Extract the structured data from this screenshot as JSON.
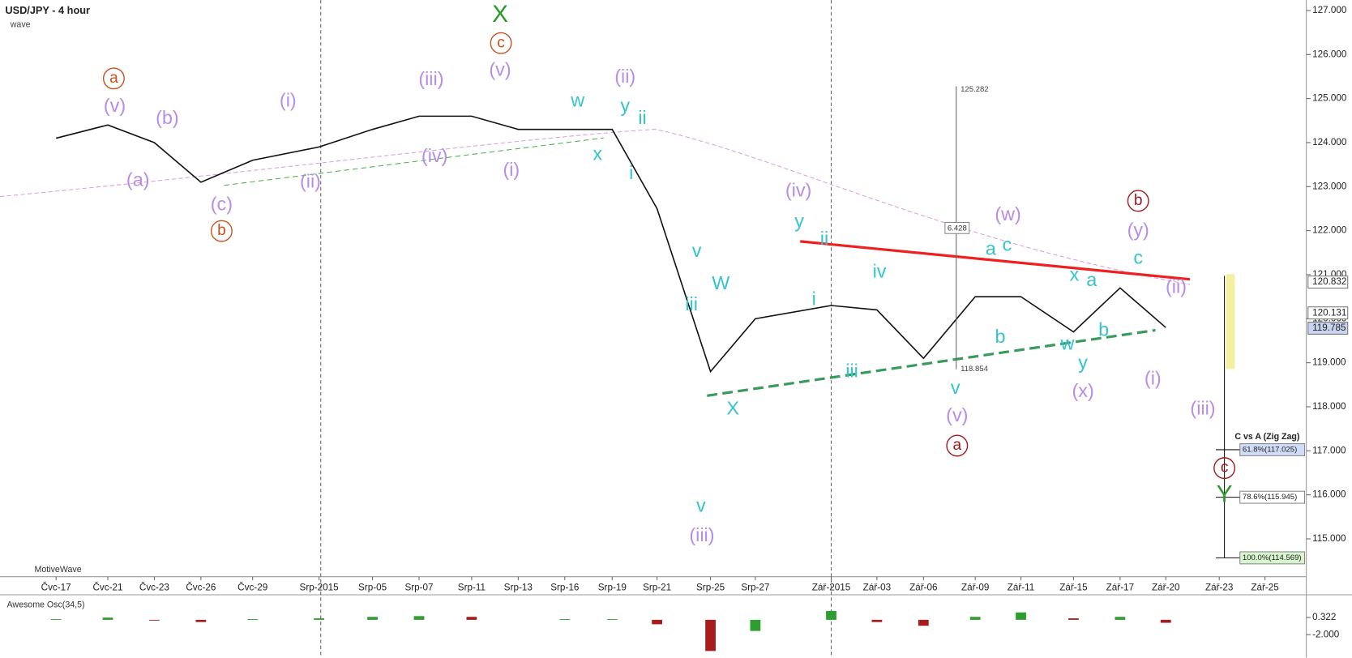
{
  "chart_data": [
    {
      "type": "line",
      "title": "USD/JPY - 4 hour",
      "subtitle": "wave",
      "watermark": "MotiveWave",
      "categories": [
        "Čvc-17",
        "Čvc-21",
        "Čvc-23",
        "Čvc-26",
        "Čvc-29",
        "Srp-2015",
        "Srp-05",
        "Srp-07",
        "Srp-11",
        "Srp-13",
        "Srp-16",
        "Srp-19",
        "Srp-21",
        "Srp-25",
        "Srp-27",
        "Zář-2015",
        "Zář-03",
        "Zář-06",
        "Zář-09",
        "Zář-11",
        "Zář-15",
        "Zář-17",
        "Zář-20",
        "Zář-23",
        "Zář-25"
      ],
      "series": [
        {
          "color": "#111111",
          "values": [
            124.1,
            124.4,
            124.0,
            123.1,
            123.6,
            123.9,
            124.3,
            124.6,
            124.6,
            124.3,
            124.3,
            124.3,
            122.5,
            118.8,
            120.0,
            120.3,
            120.2,
            119.1,
            120.5,
            120.5,
            119.7,
            120.7,
            119.8,
            null,
            null
          ]
        }
      ],
      "ylim": [
        114.16,
        127.18
      ],
      "yticks": [
        {
          "value": 115,
          "label": "115.000"
        },
        {
          "value": 116,
          "label": "116.000"
        },
        {
          "value": 117,
          "label": "117.000"
        },
        {
          "value": 118,
          "label": "118.000"
        },
        {
          "value": 119,
          "label": "119.000"
        },
        {
          "value": 120,
          "label": "120.000"
        },
        {
          "value": 121,
          "label": "121.000"
        },
        {
          "value": 122,
          "label": "122.000"
        },
        {
          "value": 123,
          "label": "123.000"
        },
        {
          "value": 124,
          "label": "124.000"
        },
        {
          "value": 125,
          "label": "125.000"
        },
        {
          "value": 126,
          "label": "126.000"
        },
        {
          "value": 127,
          "label": "127.000"
        }
      ],
      "price_markers": [
        120.832,
        120.131,
        119.785
      ],
      "measure": {
        "high": 125.282,
        "range": 6.428,
        "low": 118.854
      },
      "fib_title": "C vs A (Zig Zag)",
      "fib_levels": [
        {
          "value": 117.025,
          "label": "61.8%(117.025)"
        },
        {
          "value": 115.945,
          "label": "78.6%(115.945)"
        },
        {
          "value": 114.569,
          "label": "100.0%(114.569)"
        }
      ],
      "annotations": [
        {
          "text": "(v)",
          "color": "#b98ce8"
        },
        {
          "text": "(a)",
          "color": "#b98ce8"
        },
        {
          "text": "(b)",
          "color": "#b98ce8"
        },
        {
          "text": "(c)",
          "color": "#b98ce8"
        },
        {
          "text": "(i)",
          "color": "#b98ce8"
        },
        {
          "text": "(ii)",
          "color": "#b98ce8"
        },
        {
          "text": "(iii)",
          "color": "#b98ce8"
        },
        {
          "text": "(iv)",
          "color": "#b98ce8"
        },
        {
          "text": "(v)",
          "color": "#b98ce8"
        },
        {
          "text": "(i)",
          "color": "#b98ce8"
        },
        {
          "text": "(ii)",
          "color": "#b98ce8"
        },
        {
          "text": "(iv)",
          "color": "#b98ce8"
        },
        {
          "text": "(iii)",
          "color": "#b98ce8"
        },
        {
          "text": "(w)",
          "color": "#b98ce8"
        },
        {
          "text": "(y)",
          "color": "#b98ce8"
        },
        {
          "text": "(x)",
          "color": "#b98ce8"
        },
        {
          "text": "(v)",
          "color": "#b98ce8"
        },
        {
          "text": "(i)",
          "color": "#b98ce8"
        },
        {
          "text": "(ii)",
          "color": "#b98ce8"
        },
        {
          "text": "(iii)",
          "color": "#b98ce8"
        },
        {
          "text": "a",
          "color": "#c8501c",
          "circled": true
        },
        {
          "text": "c",
          "color": "#c8501c",
          "circled": true
        },
        {
          "text": "b",
          "color": "#c8501c",
          "circled": true
        },
        {
          "text": "a",
          "color": "#a01818",
          "circled": true
        },
        {
          "text": "b",
          "color": "#a01818",
          "circled": true
        },
        {
          "text": "c",
          "color": "#a01818",
          "circled": true
        },
        {
          "text": "X",
          "color": "#2a9a2a"
        },
        {
          "text": "Y",
          "color": "#2a9a2a"
        },
        {
          "text": "w",
          "color": "#35c4cc"
        },
        {
          "text": "x",
          "color": "#35c4cc"
        },
        {
          "text": "y",
          "color": "#35c4cc"
        },
        {
          "text": "ii",
          "color": "#35c4cc"
        },
        {
          "text": "i",
          "color": "#35c4cc"
        },
        {
          "text": "v",
          "color": "#35c4cc"
        },
        {
          "text": "W",
          "color": "#35c4cc"
        },
        {
          "text": "iii",
          "color": "#35c4cc"
        },
        {
          "text": "X",
          "color": "#35c4cc"
        },
        {
          "text": "y",
          "color": "#35c4cc"
        },
        {
          "text": "ii",
          "color": "#35c4cc"
        },
        {
          "text": "i",
          "color": "#35c4cc"
        },
        {
          "text": "iv",
          "color": "#35c4cc"
        },
        {
          "text": "iii",
          "color": "#35c4cc"
        },
        {
          "text": "v",
          "color": "#35c4cc"
        },
        {
          "text": "v",
          "color": "#35c4cc"
        },
        {
          "text": "a",
          "color": "#35c4cc"
        },
        {
          "text": "c",
          "color": "#35c4cc"
        },
        {
          "text": "b",
          "color": "#35c4cc"
        },
        {
          "text": "x",
          "color": "#35c4cc"
        },
        {
          "text": "a",
          "color": "#35c4cc"
        },
        {
          "text": "w",
          "color": "#35c4cc"
        },
        {
          "text": "b",
          "color": "#35c4cc"
        },
        {
          "text": "y",
          "color": "#35c4cc"
        },
        {
          "text": "c",
          "color": "#35c4cc"
        }
      ]
    },
    {
      "type": "bar",
      "title": "Awesome Osc(34,5)",
      "up_color": "#2e9e2e",
      "down_color": "#a81c1c",
      "values": [
        0.1,
        0.3,
        -0.1,
        -0.3,
        0.1,
        0.2,
        0.4,
        0.5,
        0.4,
        0.0,
        0.1,
        0.1,
        -0.6,
        -4.2,
        -1.5,
        1.2,
        -0.3,
        -0.8,
        0.4,
        1.0,
        0.2,
        0.4,
        -0.4,
        null,
        null
      ],
      "ylim": [
        -4.53,
        3.14
      ],
      "yticks": [
        0.322,
        {
          "value": -2,
          "label": "-2.000"
        }
      ]
    }
  ]
}
